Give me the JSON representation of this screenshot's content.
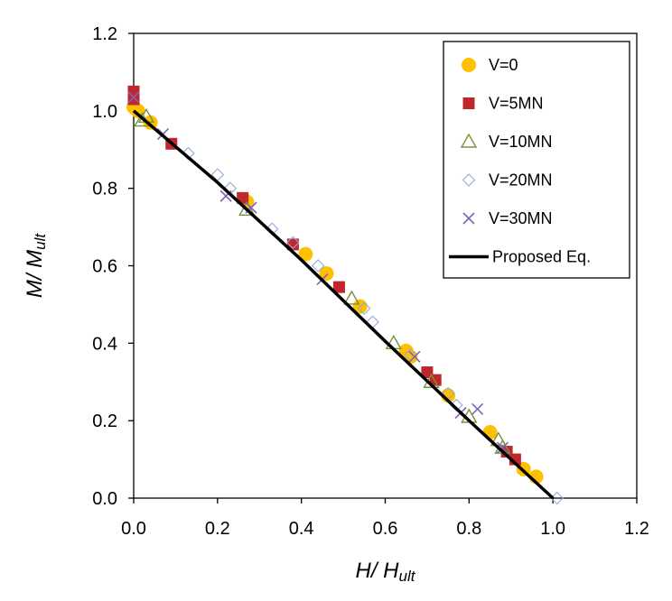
{
  "chart_data": {
    "type": "scatter",
    "title": "",
    "xlabel": {
      "main": "H/ H",
      "sub": "ult"
    },
    "ylabel": {
      "main": "M/ M",
      "sub": "ult"
    },
    "xlim": [
      0,
      1.2
    ],
    "ylim": [
      0,
      1.2
    ],
    "xticks": [
      0,
      0.2,
      0.4,
      0.6,
      0.8,
      1.0,
      1.2
    ],
    "yticks": [
      0,
      0.2,
      0.4,
      0.6,
      0.8,
      1.0,
      1.2
    ],
    "xtick_labels": [
      "0.0",
      "0.2",
      "0.4",
      "0.6",
      "0.8",
      "1.0",
      "1.2"
    ],
    "ytick_labels": [
      "0.0",
      "0.2",
      "0.4",
      "0.6",
      "0.8",
      "1.0",
      "1.2"
    ],
    "grid": false,
    "legend_position": "top-right",
    "series": [
      {
        "name": "V=0",
        "marker": "circle",
        "color": "#FFC000",
        "points": [
          [
            0.0,
            1.01
          ],
          [
            0.01,
            1.0
          ],
          [
            0.04,
            0.97
          ],
          [
            0.27,
            0.765
          ],
          [
            0.41,
            0.63
          ],
          [
            0.46,
            0.58
          ],
          [
            0.54,
            0.495
          ],
          [
            0.65,
            0.38
          ],
          [
            0.66,
            0.365
          ],
          [
            0.75,
            0.265
          ],
          [
            0.85,
            0.17
          ],
          [
            0.93,
            0.075
          ],
          [
            0.96,
            0.055
          ]
        ]
      },
      {
        "name": "V=5MN",
        "marker": "square",
        "color": "#C0272D",
        "points": [
          [
            0.0,
            1.05
          ],
          [
            0.0,
            1.03
          ],
          [
            0.09,
            0.915
          ],
          [
            0.26,
            0.775
          ],
          [
            0.38,
            0.655
          ],
          [
            0.49,
            0.545
          ],
          [
            0.7,
            0.325
          ],
          [
            0.72,
            0.305
          ],
          [
            0.89,
            0.12
          ],
          [
            0.91,
            0.1
          ]
        ]
      },
      {
        "name": "V=10MN",
        "marker": "triangle",
        "color": "#77933C",
        "points": [
          [
            0.02,
            0.975
          ],
          [
            0.03,
            0.985
          ],
          [
            0.27,
            0.745
          ],
          [
            0.52,
            0.515
          ],
          [
            0.62,
            0.4
          ],
          [
            0.71,
            0.3
          ],
          [
            0.8,
            0.21
          ],
          [
            0.87,
            0.15
          ],
          [
            0.88,
            0.13
          ]
        ]
      },
      {
        "name": "V=20MN",
        "marker": "diamond",
        "color": "#8FAADC",
        "points": [
          [
            0.13,
            0.89
          ],
          [
            0.2,
            0.835
          ],
          [
            0.23,
            0.8
          ],
          [
            0.33,
            0.695
          ],
          [
            0.38,
            0.66
          ],
          [
            0.44,
            0.6
          ],
          [
            0.55,
            0.49
          ],
          [
            0.57,
            0.455
          ],
          [
            0.66,
            0.37
          ],
          [
            0.75,
            0.27
          ],
          [
            0.77,
            0.24
          ],
          [
            1.01,
            0.0
          ]
        ]
      },
      {
        "name": "V=30MN",
        "marker": "x",
        "color": "#7F63B8",
        "points": [
          [
            0.0,
            1.035
          ],
          [
            0.07,
            0.94
          ],
          [
            0.22,
            0.78
          ],
          [
            0.28,
            0.75
          ],
          [
            0.45,
            0.565
          ],
          [
            0.67,
            0.365
          ],
          [
            0.78,
            0.22
          ],
          [
            0.82,
            0.23
          ],
          [
            0.88,
            0.13
          ]
        ]
      },
      {
        "name": "Proposed Eq.",
        "marker": "line",
        "color": "#000000",
        "points": [
          [
            0.0,
            1.0
          ],
          [
            0.2,
            0.815
          ],
          [
            0.4,
            0.615
          ],
          [
            0.6,
            0.405
          ],
          [
            0.8,
            0.2
          ],
          [
            1.0,
            0.0
          ]
        ]
      }
    ]
  }
}
